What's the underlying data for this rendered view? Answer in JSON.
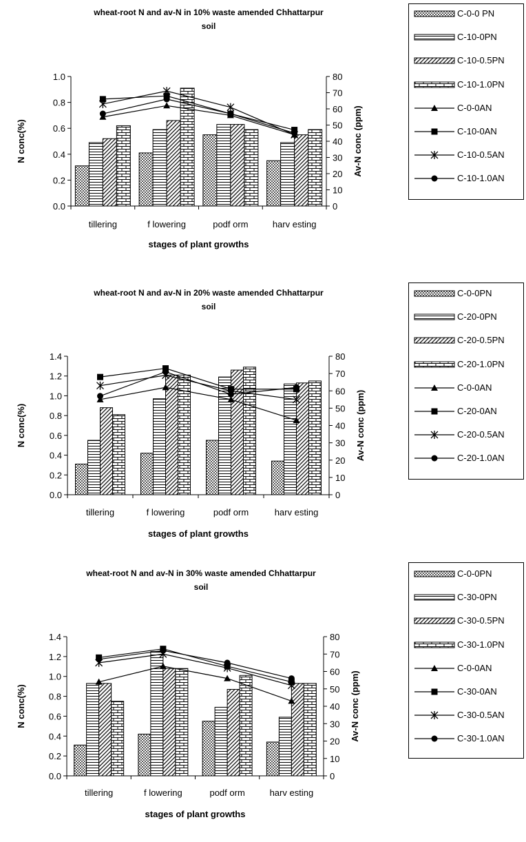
{
  "chart_data": [
    {
      "type": "bar",
      "title_line1": "wheat-root N and av-N in 10% waste amended Chhattarpur",
      "title_line2": "soil",
      "xlabel": "stages of plant growths",
      "ylabel": "N conc(%)",
      "y2label": "Av-N conc (ppm)",
      "ylim": [
        0,
        1.0
      ],
      "yticks": [
        "0.0",
        "0.2",
        "0.4",
        "0.6",
        "0.8",
        "1.0"
      ],
      "y2lim": [
        0,
        80
      ],
      "y2ticks": [
        "0",
        "10",
        "20",
        "30",
        "40",
        "50",
        "60",
        "70",
        "80"
      ],
      "categories": [
        "tillering",
        "f lowering",
        "podf orm",
        "harv esting"
      ],
      "bar_series": [
        {
          "name": "C-0-0 PN",
          "pattern": "checker",
          "values": [
            0.31,
            0.41,
            0.55,
            0.35
          ]
        },
        {
          "name": "C-10-0PN",
          "pattern": "hlines",
          "values": [
            0.49,
            0.59,
            0.63,
            0.49
          ]
        },
        {
          "name": "C-10-0.5PN",
          "pattern": "diag",
          "values": [
            0.52,
            0.66,
            0.63,
            0.55
          ]
        },
        {
          "name": "C-10-1.0PN",
          "pattern": "brick",
          "values": [
            0.62,
            0.91,
            0.59,
            0.59
          ]
        }
      ],
      "line_series": [
        {
          "name": "C-0-0AN",
          "marker": "triangle",
          "values": [
            55,
            62,
            56,
            44
          ]
        },
        {
          "name": "C-10-0AN",
          "marker": "square",
          "values": [
            66,
            68,
            57,
            47
          ]
        },
        {
          "name": "C-10-0.5AN",
          "marker": "asterisk",
          "values": [
            63,
            71,
            61,
            44
          ]
        },
        {
          "name": "C-10-1.0AN",
          "marker": "circle",
          "values": [
            57,
            66,
            57,
            45
          ]
        }
      ]
    },
    {
      "type": "bar",
      "title_line1": "wheat-root N and av-N in 20% waste amended Chhattarpur",
      "title_line2": "soil",
      "xlabel": "stages of plant growths",
      "ylabel": "N conc(%)",
      "y2label": "Av-N conc (ppm)",
      "ylim": [
        0,
        1.4
      ],
      "yticks": [
        "0.0",
        "0.2",
        "0.4",
        "0.6",
        "0.8",
        "1.0",
        "1.2",
        "1.4"
      ],
      "y2lim": [
        0,
        80
      ],
      "y2ticks": [
        "0",
        "10",
        "20",
        "30",
        "40",
        "50",
        "60",
        "70",
        "80"
      ],
      "categories": [
        "tillering",
        "f lowering",
        "podf orm",
        "harv esting"
      ],
      "bar_series": [
        {
          "name": "C-0-0PN",
          "pattern": "checker",
          "values": [
            0.31,
            0.42,
            0.55,
            0.34
          ]
        },
        {
          "name": "C-20-0PN",
          "pattern": "hlines",
          "values": [
            0.55,
            0.97,
            1.19,
            1.12
          ]
        },
        {
          "name": "C-20-0.5PN",
          "pattern": "diag",
          "values": [
            0.88,
            1.21,
            1.26,
            1.13
          ]
        },
        {
          "name": "C-20-1.0PN",
          "pattern": "brick",
          "values": [
            0.81,
            1.21,
            1.29,
            1.15
          ]
        }
      ],
      "line_series": [
        {
          "name": "C-0-0AN",
          "marker": "triangle",
          "values": [
            55,
            62,
            55,
            43
          ]
        },
        {
          "name": "C-20-0AN",
          "marker": "square",
          "values": [
            68,
            73,
            61,
            61
          ]
        },
        {
          "name": "C-20-0.5AN",
          "marker": "asterisk",
          "values": [
            63,
            69,
            60,
            55
          ]
        },
        {
          "name": "C-20-1.0AN",
          "marker": "circle",
          "values": [
            57,
            71,
            58,
            62
          ]
        }
      ]
    },
    {
      "type": "bar",
      "title_line1": "wheat-root N and av-N in 30% waste amended Chhattarpur",
      "title_line2": "soil",
      "xlabel": "stages of plant growths",
      "ylabel": "N conc(%)",
      "y2label": "Av-N conc (ppm)",
      "ylim": [
        0,
        1.4
      ],
      "yticks": [
        "0.0",
        "0.2",
        "0.4",
        "0.6",
        "0.8",
        "1.0",
        "1.2",
        "1.4"
      ],
      "y2lim": [
        0,
        80
      ],
      "y2ticks": [
        "0",
        "10",
        "20",
        "30",
        "40",
        "50",
        "60",
        "70",
        "80"
      ],
      "categories": [
        "tillering",
        "f lowering",
        "podf orm",
        "harv esting"
      ],
      "bar_series": [
        {
          "name": "C-0-0PN",
          "pattern": "checker",
          "values": [
            0.31,
            0.42,
            0.55,
            0.34
          ]
        },
        {
          "name": "C-30-0PN",
          "pattern": "hlines",
          "values": [
            0.93,
            1.25,
            0.69,
            0.59
          ]
        },
        {
          "name": "C-30-0.5PN",
          "pattern": "diag",
          "values": [
            0.93,
            1.08,
            0.87,
            0.93
          ]
        },
        {
          "name": "C-30-1.0PN",
          "pattern": "brick",
          "values": [
            0.75,
            1.08,
            1.01,
            0.93
          ]
        }
      ],
      "line_series": [
        {
          "name": "C-0-0AN",
          "marker": "triangle",
          "values": [
            54,
            63,
            56,
            43
          ]
        },
        {
          "name": "C-30-0AN",
          "marker": "square",
          "values": [
            68,
            73,
            63,
            54
          ]
        },
        {
          "name": "C-30-0.5AN",
          "marker": "asterisk",
          "values": [
            65,
            70,
            62,
            52
          ]
        },
        {
          "name": "C-30-1.0AN",
          "marker": "circle",
          "values": [
            67,
            72,
            65,
            56
          ]
        }
      ]
    }
  ]
}
